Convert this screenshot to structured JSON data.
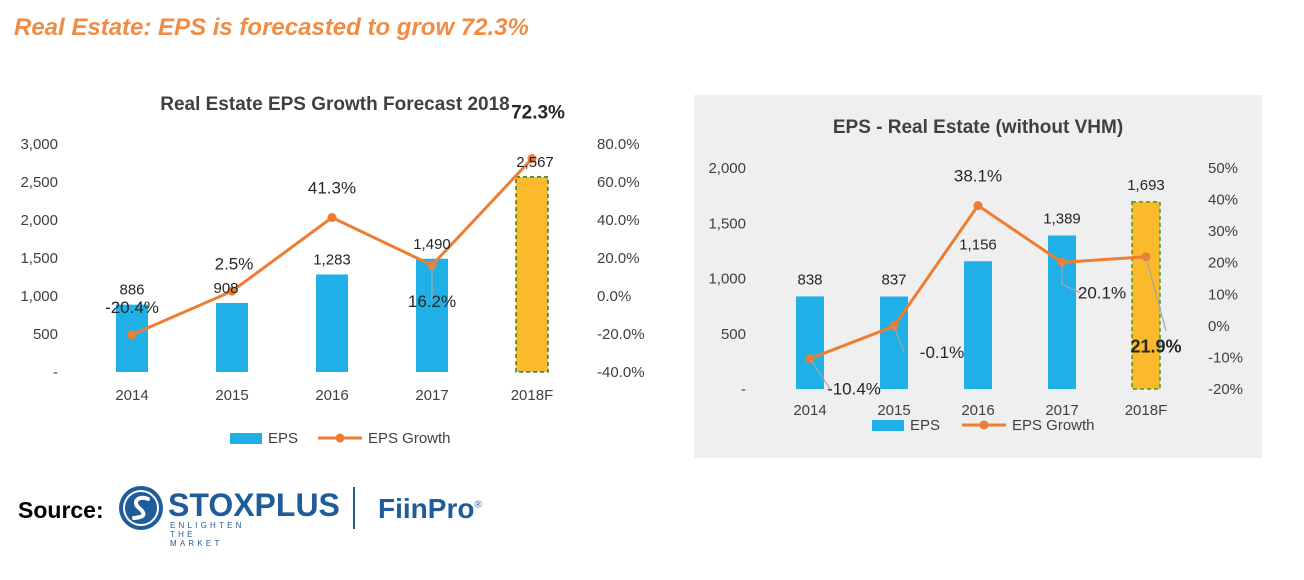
{
  "headline": "Real Estate: EPS is forecasted to grow 72.3%",
  "source": {
    "label": "Source:",
    "brand": "STOXPLUS",
    "tagline": "ENLIGHTEN THE MARKET",
    "partner": "FiinPro",
    "partner_mark": "®"
  },
  "colors": {
    "headline": "#F08C44",
    "bar": "#1FB0E8",
    "forecast_bar": "#FBBA2C",
    "line": "#ED7D31",
    "brand": "#1F5C99",
    "panel_bg": "#EFEFEF"
  },
  "chart_data": [
    {
      "type": "bar+line",
      "title": "Real Estate EPS Growth Forecast 2018",
      "categories": [
        "2014",
        "2015",
        "2016",
        "2017",
        "2018F"
      ],
      "series": [
        {
          "name": "EPS",
          "type": "bar",
          "axis": "left",
          "values": [
            886,
            908,
            1283,
            1490,
            2567
          ],
          "labels": [
            "886",
            "908",
            "1,283",
            "1,490",
            "2,567"
          ]
        },
        {
          "name": "EPS Growth",
          "type": "line",
          "axis": "right",
          "values": [
            -20.4,
            2.5,
            41.3,
            16.2,
            72.3
          ],
          "labels": [
            "-20.4%",
            "2.5%",
            "41.3%",
            "16.2%",
            "72.3%"
          ]
        }
      ],
      "y_left": {
        "min": 0,
        "max": 3000,
        "ticks": [
          "-",
          "500",
          "1,000",
          "1,500",
          "2,000",
          "2,500",
          "3,000"
        ]
      },
      "y_right": {
        "min": -40,
        "max": 80,
        "ticks": [
          "-40.0%",
          "-20.0%",
          "0.0%",
          "20.0%",
          "40.0%",
          "60.0%",
          "80.0%"
        ]
      },
      "highlight": "2018F",
      "legend": {
        "position": "bottom",
        "entries": [
          "EPS",
          "EPS Growth"
        ]
      },
      "grid": false
    },
    {
      "type": "bar+line",
      "title": "EPS - Real Estate (without VHM)",
      "categories": [
        "2014",
        "2015",
        "2016",
        "2017",
        "2018F"
      ],
      "series": [
        {
          "name": "EPS",
          "type": "bar",
          "axis": "left",
          "values": [
            838,
            837,
            1156,
            1389,
            1693
          ],
          "labels": [
            "838",
            "837",
            "1,156",
            "1,389",
            "1,693"
          ]
        },
        {
          "name": "EPS Growth",
          "type": "line",
          "axis": "right",
          "values": [
            -10.4,
            -0.1,
            38.1,
            20.1,
            21.9
          ],
          "labels": [
            "-10.4%",
            "-0.1%",
            "38.1%",
            "20.1%",
            "21.9%"
          ]
        }
      ],
      "y_left": {
        "min": 0,
        "max": 2000,
        "ticks": [
          "-",
          "500",
          "1,000",
          "1,500",
          "2,000"
        ]
      },
      "y_right": {
        "min": -20,
        "max": 50,
        "ticks": [
          "-20%",
          "-10%",
          "0%",
          "10%",
          "20%",
          "30%",
          "40%",
          "50%"
        ]
      },
      "highlight": "2018F",
      "legend": {
        "position": "bottom",
        "entries": [
          "EPS",
          "EPS Growth"
        ]
      },
      "grid": false
    }
  ]
}
